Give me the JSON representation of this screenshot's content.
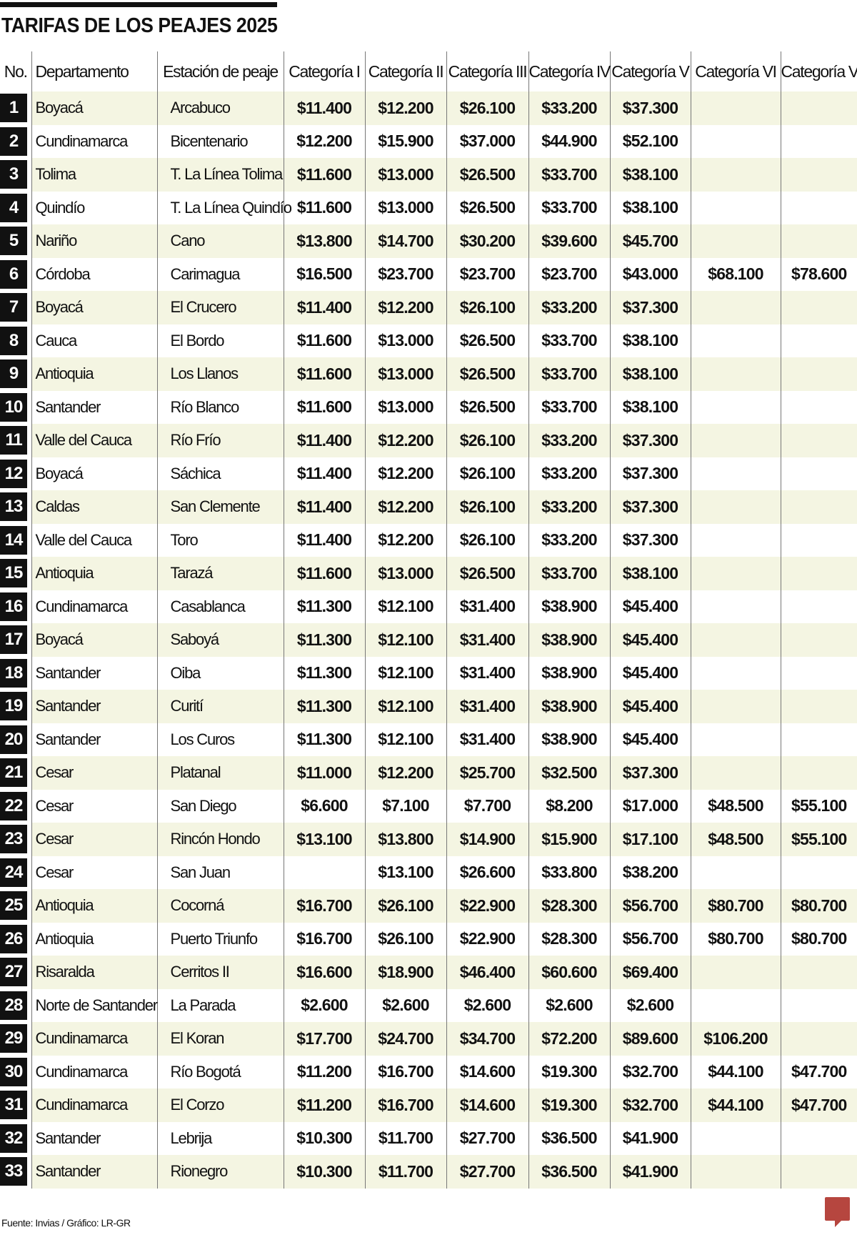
{
  "title": "TARIFAS DE LOS PEAJES 2025",
  "headers": [
    "No.",
    "Departamento",
    "Estación de peaje",
    "Categoría I",
    "Categoría II",
    "Categoría III",
    "Categoría IV",
    "Categoría V",
    "Categoría VI",
    "Categoría VII"
  ],
  "rows": [
    [
      "1",
      "Boyacá",
      "Arcabuco",
      "$11.400",
      "$12.200",
      "$26.100",
      "$33.200",
      "$37.300",
      "",
      ""
    ],
    [
      "2",
      "Cundinamarca",
      "Bicentenario",
      "$12.200",
      "$15.900",
      "$37.000",
      "$44.900",
      "$52.100",
      "",
      ""
    ],
    [
      "3",
      "Tolima",
      "T. La Línea Tolima",
      "$11.600",
      "$13.000",
      "$26.500",
      "$33.700",
      "$38.100",
      "",
      ""
    ],
    [
      "4",
      "Quindío",
      "T. La Línea Quindío",
      "$11.600",
      "$13.000",
      "$26.500",
      "$33.700",
      "$38.100",
      "",
      ""
    ],
    [
      "5",
      "Nariño",
      "Cano",
      "$13.800",
      "$14.700",
      "$30.200",
      "$39.600",
      "$45.700",
      "",
      ""
    ],
    [
      "6",
      "Córdoba",
      "Carimagua",
      "$16.500",
      "$23.700",
      "$23.700",
      "$23.700",
      "$43.000",
      "$68.100",
      "$78.600"
    ],
    [
      "7",
      "Boyacá",
      "El Crucero",
      "$11.400",
      "$12.200",
      "$26.100",
      "$33.200",
      "$37.300",
      "",
      ""
    ],
    [
      "8",
      "Cauca",
      "El Bordo",
      "$11.600",
      "$13.000",
      "$26.500",
      "$33.700",
      "$38.100",
      "",
      ""
    ],
    [
      "9",
      "Antioquia",
      "Los Llanos",
      "$11.600",
      "$13.000",
      "$26.500",
      "$33.700",
      "$38.100",
      "",
      ""
    ],
    [
      "10",
      "Santander",
      "Río Blanco",
      "$11.600",
      "$13.000",
      "$26.500",
      "$33.700",
      "$38.100",
      "",
      ""
    ],
    [
      "11",
      "Valle del Cauca",
      "Río Frío",
      "$11.400",
      "$12.200",
      "$26.100",
      "$33.200",
      "$37.300",
      "",
      ""
    ],
    [
      "12",
      "Boyacá",
      "Sáchica",
      "$11.400",
      "$12.200",
      "$26.100",
      "$33.200",
      "$37.300",
      "",
      ""
    ],
    [
      "13",
      "Caldas",
      "San Clemente",
      "$11.400",
      "$12.200",
      "$26.100",
      "$33.200",
      "$37.300",
      "",
      ""
    ],
    [
      "14",
      "Valle del Cauca",
      "Toro",
      "$11.400",
      "$12.200",
      "$26.100",
      "$33.200",
      "$37.300",
      "",
      ""
    ],
    [
      "15",
      "Antioquia",
      "Tarazá",
      "$11.600",
      "$13.000",
      "$26.500",
      "$33.700",
      "$38.100",
      "",
      ""
    ],
    [
      "16",
      "Cundinamarca",
      "Casablanca",
      "$11.300",
      "$12.100",
      "$31.400",
      "$38.900",
      "$45.400",
      "",
      ""
    ],
    [
      "17",
      "Boyacá",
      "Saboyá",
      "$11.300",
      "$12.100",
      "$31.400",
      "$38.900",
      "$45.400",
      "",
      ""
    ],
    [
      "18",
      "Santander",
      "Oiba",
      "$11.300",
      "$12.100",
      "$31.400",
      "$38.900",
      "$45.400",
      "",
      ""
    ],
    [
      "19",
      "Santander",
      "Curití",
      "$11.300",
      "$12.100",
      "$31.400",
      "$38.900",
      "$45.400",
      "",
      ""
    ],
    [
      "20",
      "Santander",
      "Los Curos",
      "$11.300",
      "$12.100",
      "$31.400",
      "$38.900",
      "$45.400",
      "",
      ""
    ],
    [
      "21",
      "Cesar",
      "Platanal",
      "$11.000",
      "$12.200",
      "$25.700",
      "$32.500",
      "$37.300",
      "",
      ""
    ],
    [
      "22",
      "Cesar",
      "San Diego",
      "$6.600",
      "$7.100",
      "$7.700",
      "$8.200",
      "$17.000",
      "$48.500",
      "$55.100"
    ],
    [
      "23",
      "Cesar",
      "Rincón Hondo",
      "$13.100",
      "$13.800",
      "$14.900",
      "$15.900",
      "$17.100",
      "$48.500",
      "$55.100"
    ],
    [
      "24",
      "Cesar",
      "San Juan",
      "",
      "$13.100",
      "$26.600",
      "$33.800",
      "$38.200",
      "",
      ""
    ],
    [
      "25",
      "Antioquia",
      "Cocorná",
      "$16.700",
      "$26.100",
      "$22.900",
      "$28.300",
      "$56.700",
      "$80.700",
      "$80.700"
    ],
    [
      "26",
      "Antioquia",
      "Puerto Triunfo",
      "$16.700",
      "$26.100",
      "$22.900",
      "$28.300",
      "$56.700",
      "$80.700",
      "$80.700"
    ],
    [
      "27",
      "Risaralda",
      "Cerritos II",
      "$16.600",
      "$18.900",
      "$46.400",
      "$60.600",
      "$69.400",
      "",
      ""
    ],
    [
      "28",
      "Norte de Santander",
      "La Parada",
      "$2.600",
      "$2.600",
      "$2.600",
      "$2.600",
      "$2.600",
      "",
      ""
    ],
    [
      "29",
      "Cundinamarca",
      "El Koran",
      "$17.700",
      "$24.700",
      "$34.700",
      "$72.200",
      "$89.600",
      "$106.200",
      ""
    ],
    [
      "30",
      "Cundinamarca",
      "Río Bogotá",
      "$11.200",
      "$16.700",
      "$14.600",
      "$19.300",
      "$32.700",
      "$44.100",
      "$47.700"
    ],
    [
      "31",
      "Cundinamarca",
      "El Corzo",
      "$11.200",
      "$16.700",
      "$14.600",
      "$19.300",
      "$32.700",
      "$44.100",
      "$47.700"
    ],
    [
      "32",
      "Santander",
      "Lebrija",
      "$10.300",
      "$11.700",
      "$27.700",
      "$36.500",
      "$41.900",
      "",
      ""
    ],
    [
      "33",
      "Santander",
      "Rionegro",
      "$10.300",
      "$11.700",
      "$27.700",
      "$36.500",
      "$41.900",
      "",
      ""
    ]
  ],
  "footer": "Fuente: Invias / Gráfico: LR-GR",
  "logo": "LR",
  "colors": {
    "stripe": "#f4f5e2",
    "logo": "#b6463f"
  }
}
